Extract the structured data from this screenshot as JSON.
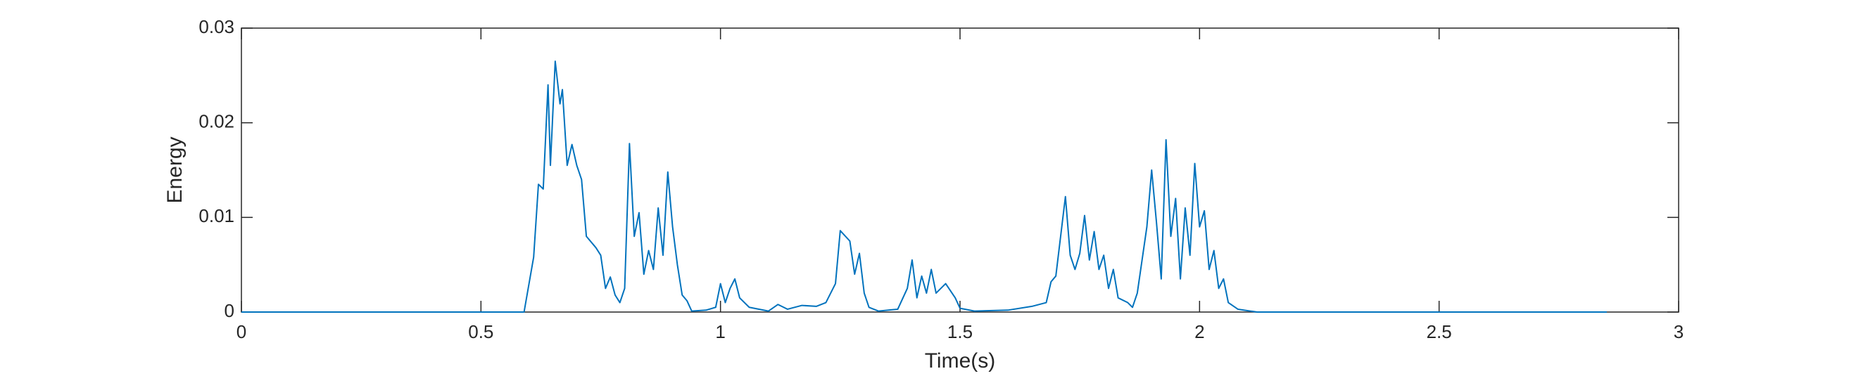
{
  "chart_data": {
    "type": "line",
    "x_label": "Time(s)",
    "y_label": "Energy",
    "x": [
      0,
      0.59,
      0.61,
      0.62,
      0.63,
      0.64,
      0.645,
      0.655,
      0.665,
      0.67,
      0.68,
      0.69,
      0.7,
      0.71,
      0.72,
      0.74,
      0.75,
      0.76,
      0.77,
      0.78,
      0.79,
      0.8,
      0.81,
      0.82,
      0.83,
      0.84,
      0.85,
      0.86,
      0.87,
      0.88,
      0.89,
      0.9,
      0.91,
      0.92,
      0.93,
      0.94,
      0.97,
      0.99,
      1.0,
      1.01,
      1.02,
      1.03,
      1.04,
      1.06,
      1.1,
      1.12,
      1.14,
      1.17,
      1.2,
      1.22,
      1.24,
      1.25,
      1.27,
      1.28,
      1.29,
      1.3,
      1.31,
      1.33,
      1.37,
      1.39,
      1.4,
      1.41,
      1.42,
      1.43,
      1.44,
      1.45,
      1.47,
      1.49,
      1.5,
      1.53,
      1.6,
      1.65,
      1.68,
      1.69,
      1.7,
      1.72,
      1.73,
      1.74,
      1.75,
      1.76,
      1.77,
      1.78,
      1.79,
      1.8,
      1.81,
      1.82,
      1.83,
      1.85,
      1.86,
      1.87,
      1.89,
      1.9,
      1.91,
      1.92,
      1.93,
      1.94,
      1.95,
      1.96,
      1.97,
      1.98,
      1.99,
      2.0,
      2.01,
      2.02,
      2.03,
      2.04,
      2.05,
      2.06,
      2.08,
      2.12,
      2.85
    ],
    "series": [
      {
        "color": "#0072bd",
        "values": [
          0,
          0,
          0.0058,
          0.0135,
          0.013,
          0.024,
          0.0155,
          0.0265,
          0.022,
          0.0235,
          0.0155,
          0.0177,
          0.0155,
          0.014,
          0.008,
          0.0068,
          0.006,
          0.0025,
          0.0037,
          0.0018,
          0.001,
          0.0025,
          0.0178,
          0.008,
          0.0105,
          0.004,
          0.0065,
          0.0045,
          0.011,
          0.006,
          0.0148,
          0.009,
          0.005,
          0.0018,
          0.0012,
          0.0001,
          0.0002,
          0.0005,
          0.003,
          0.001,
          0.0025,
          0.0035,
          0.0015,
          0.0005,
          0.0001,
          0.0008,
          0.0003,
          0.0007,
          0.0006,
          0.001,
          0.003,
          0.0086,
          0.0075,
          0.004,
          0.0062,
          0.002,
          0.0005,
          0.0001,
          0.0003,
          0.0025,
          0.0055,
          0.0015,
          0.0038,
          0.002,
          0.0045,
          0.002,
          0.003,
          0.0015,
          0.0004,
          0.0001,
          0.0002,
          0.0006,
          0.001,
          0.0032,
          0.0038,
          0.0122,
          0.006,
          0.0045,
          0.0062,
          0.0102,
          0.0055,
          0.0085,
          0.0045,
          0.006,
          0.0025,
          0.0045,
          0.0015,
          0.001,
          0.0005,
          0.002,
          0.009,
          0.015,
          0.0095,
          0.0035,
          0.0182,
          0.008,
          0.012,
          0.0035,
          0.011,
          0.006,
          0.0157,
          0.009,
          0.0107,
          0.0045,
          0.0065,
          0.0025,
          0.0035,
          0.001,
          0.0003,
          0,
          0
        ]
      }
    ],
    "xlim": [
      0,
      3
    ],
    "xticks": [
      0,
      0.5,
      1,
      1.5,
      2,
      2.5,
      3
    ],
    "ylim": [
      0,
      0.03
    ],
    "yticks": [
      0,
      0.01,
      0.02,
      0.03
    ],
    "grid": false
  }
}
